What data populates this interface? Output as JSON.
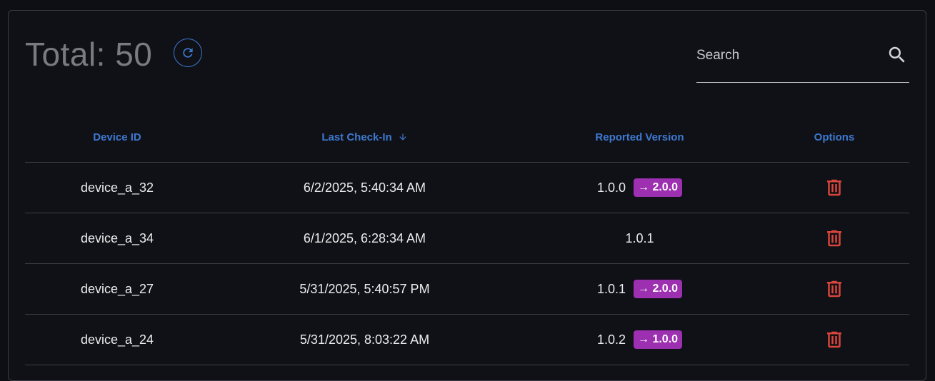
{
  "header": {
    "total_label": "Total: 50",
    "refresh_icon": "refresh-icon"
  },
  "search": {
    "placeholder": "Search",
    "value": "",
    "icon": "search-icon"
  },
  "table": {
    "columns": [
      "Device ID",
      "Last Check-In",
      "Reported Version",
      "Options"
    ],
    "sort": {
      "column": "Last Check-In",
      "direction": "descending"
    },
    "rows": [
      {
        "device_id": "device_a_32",
        "last_check_in": "6/2/2025, 5:40:34 AM",
        "reported_version": "1.0.0",
        "target_version": "→ 2.0.0"
      },
      {
        "device_id": "device_a_34",
        "last_check_in": "6/1/2025, 6:28:34 AM",
        "reported_version": "1.0.1",
        "target_version": null
      },
      {
        "device_id": "device_a_27",
        "last_check_in": "5/31/2025, 5:40:57 PM",
        "reported_version": "1.0.1",
        "target_version": "→ 2.0.0"
      },
      {
        "device_id": "device_a_24",
        "last_check_in": "5/31/2025, 8:03:22 AM",
        "reported_version": "1.0.2",
        "target_version": "→ 1.0.0"
      }
    ]
  },
  "colors": {
    "accent": "#3e78d0",
    "badge": "#9c30b0",
    "delete": "#d9453b",
    "muted_text": "#7a7b80"
  }
}
